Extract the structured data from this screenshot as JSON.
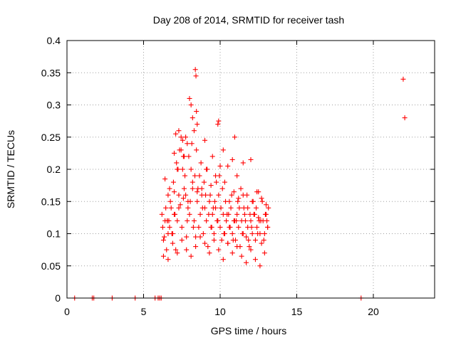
{
  "chart_data": {
    "type": "scatter",
    "title": "Day 208 of 2014, SRMTID for receiver tash",
    "xlabel": "GPS time / hours",
    "ylabel": "SRMTID / TECUs",
    "xlim": [
      0,
      24
    ],
    "ylim": [
      0,
      0.4
    ],
    "xticks": [
      0,
      5,
      10,
      15,
      20
    ],
    "xtick_labels": [
      "0",
      "5",
      "10",
      "15",
      "20"
    ],
    "yticks": [
      0,
      0.05,
      0.1,
      0.15,
      0.2,
      0.25,
      0.3,
      0.35,
      0.4
    ],
    "ytick_labels": [
      "0",
      "0.05",
      "0.1",
      "0.15",
      "0.2",
      "0.25",
      "0.3",
      "0.35",
      "0.4"
    ],
    "grid": true,
    "legend": "none",
    "marker": "+",
    "color": "#ff0000",
    "series": [
      {
        "x": [
          0.5,
          1.65,
          1.75,
          2.95,
          4.45,
          5.75,
          5.95,
          6.05,
          6.15,
          19.2,
          21.95,
          22.05,
          6.2,
          6.3,
          6.4,
          6.5,
          6.6,
          6.7,
          6.8,
          6.9,
          7.0,
          7.1,
          7.2,
          7.3,
          7.4,
          7.5,
          7.6,
          7.7,
          7.8,
          7.9,
          8.0,
          8.1,
          8.2,
          8.3,
          8.4,
          8.5,
          8.6,
          8.7,
          8.8,
          8.9,
          9.0,
          9.1,
          9.2,
          9.3,
          9.4,
          9.5,
          9.6,
          9.7,
          9.8,
          9.9,
          10.0,
          10.1,
          10.2,
          10.3,
          10.4,
          10.5,
          10.6,
          10.7,
          10.8,
          10.9,
          11.0,
          11.1,
          11.2,
          11.3,
          11.4,
          11.5,
          11.6,
          11.7,
          11.8,
          11.9,
          12.0,
          12.1,
          12.2,
          12.3,
          12.4,
          12.5,
          12.6,
          12.7,
          12.8,
          12.9,
          13.0,
          13.1,
          13.15,
          6.25,
          6.45,
          6.65,
          6.85,
          7.05,
          7.25,
          7.45,
          7.65,
          7.85,
          8.05,
          8.25,
          8.45,
          8.65,
          8.85,
          9.05,
          9.25,
          9.45,
          9.65,
          9.85,
          10.05,
          10.25,
          10.45,
          10.65,
          10.85,
          11.05,
          11.25,
          11.45,
          11.65,
          11.85,
          12.05,
          12.25,
          12.45,
          12.65,
          12.85,
          13.05,
          6.35,
          6.55,
          6.75,
          6.95,
          7.15,
          7.35,
          7.55,
          7.75,
          7.95,
          8.15,
          8.35,
          8.55,
          8.75,
          8.95,
          9.15,
          9.35,
          9.55,
          9.75,
          9.95,
          10.15,
          10.35,
          10.55,
          10.75,
          10.95,
          11.15,
          11.35,
          11.55,
          11.75,
          11.95,
          12.15,
          12.35,
          12.55,
          12.75,
          12.95,
          13.1,
          6.3,
          6.6,
          6.9,
          7.2,
          7.5,
          7.8,
          8.1,
          8.4,
          8.7,
          9.0,
          9.3,
          9.6,
          9.9,
          10.2,
          10.5,
          10.8,
          11.1,
          11.4,
          11.7,
          12.0,
          12.3,
          12.6,
          12.9,
          6.4,
          6.7,
          7.0,
          7.3,
          7.6,
          7.9,
          8.2,
          8.5,
          8.8,
          9.1,
          9.4,
          9.7,
          10.0,
          10.3,
          10.6,
          10.9,
          11.2,
          11.5,
          11.8,
          12.1,
          12.4,
          12.7,
          13.0,
          7.0,
          7.1,
          7.2,
          7.3,
          7.45,
          7.55,
          7.65,
          7.75,
          7.85,
          8.0,
          8.1,
          8.2,
          8.3,
          8.38,
          8.42,
          8.45,
          8.5,
          9.0,
          9.5,
          9.85,
          9.9,
          10.2,
          10.5,
          10.8,
          10.95,
          11.1,
          11.5,
          12.0,
          12.5,
          6.55,
          6.6
        ],
        "y": [
          0.0,
          0.0,
          0.0,
          0.0,
          0.0,
          0.0,
          0.0,
          0.0,
          0.0,
          0.0,
          0.34,
          0.28,
          0.13,
          0.09,
          0.12,
          0.075,
          0.16,
          0.11,
          0.14,
          0.1,
          0.13,
          0.075,
          0.12,
          0.16,
          0.145,
          0.11,
          0.22,
          0.19,
          0.095,
          0.14,
          0.13,
          0.2,
          0.17,
          0.12,
          0.095,
          0.15,
          0.11,
          0.13,
          0.17,
          0.1,
          0.14,
          0.12,
          0.08,
          0.15,
          0.11,
          0.13,
          0.1,
          0.14,
          0.12,
          0.16,
          0.11,
          0.09,
          0.13,
          0.1,
          0.12,
          0.085,
          0.11,
          0.14,
          0.1,
          0.12,
          0.09,
          0.13,
          0.11,
          0.08,
          0.12,
          0.1,
          0.13,
          0.095,
          0.11,
          0.08,
          0.12,
          0.1,
          0.13,
          0.09,
          0.11,
          0.125,
          0.1,
          0.085,
          0.12,
          0.1,
          0.13,
          0.11,
          0.14,
          0.11,
          0.14,
          0.12,
          0.1,
          0.13,
          0.2,
          0.25,
          0.17,
          0.12,
          0.15,
          0.11,
          0.23,
          0.19,
          0.14,
          0.16,
          0.13,
          0.11,
          0.15,
          0.12,
          0.14,
          0.1,
          0.13,
          0.11,
          0.09,
          0.12,
          0.14,
          0.1,
          0.12,
          0.09,
          0.11,
          0.13,
          0.1,
          0.12,
          0.09,
          0.12,
          0.095,
          0.12,
          0.15,
          0.18,
          0.21,
          0.23,
          0.2,
          0.16,
          0.22,
          0.24,
          0.19,
          0.17,
          0.21,
          0.18,
          0.2,
          0.16,
          0.14,
          0.18,
          0.19,
          0.17,
          0.15,
          0.13,
          0.16,
          0.12,
          0.15,
          0.17,
          0.14,
          0.16,
          0.13,
          0.15,
          0.14,
          0.12,
          0.15,
          0.13,
          0.11,
          0.065,
          0.06,
          0.085,
          0.07,
          0.09,
          0.075,
          0.065,
          0.08,
          0.095,
          0.085,
          0.07,
          0.09,
          0.075,
          0.06,
          0.085,
          0.07,
          0.08,
          0.065,
          0.055,
          0.075,
          0.06,
          0.05,
          0.07,
          0.185,
          0.17,
          0.165,
          0.14,
          0.155,
          0.15,
          0.18,
          0.165,
          0.16,
          0.2,
          0.175,
          0.19,
          0.205,
          0.18,
          0.15,
          0.165,
          0.155,
          0.16,
          0.14,
          0.15,
          0.165,
          0.155,
          0.145,
          0.225,
          0.255,
          0.2,
          0.26,
          0.23,
          0.245,
          0.22,
          0.25,
          0.24,
          0.31,
          0.3,
          0.28,
          0.26,
          0.355,
          0.345,
          0.29,
          0.27,
          0.245,
          0.22,
          0.27,
          0.275,
          0.23,
          0.205,
          0.215,
          0.25,
          0.19,
          0.21,
          0.215,
          0.165,
          0.12,
          0.1
        ]
      }
    ]
  }
}
